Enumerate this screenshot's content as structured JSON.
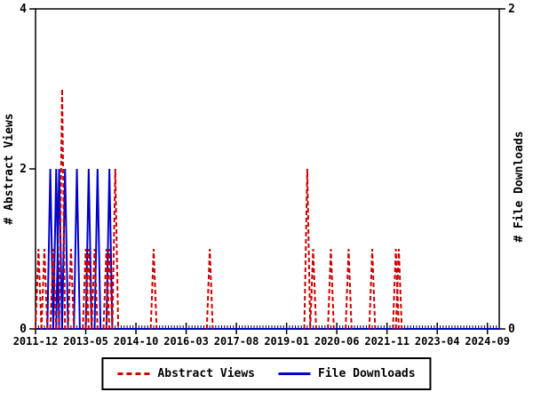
{
  "figure": {
    "background": "#ffffff",
    "axis_color": "#000000",
    "text_color": "#000000"
  },
  "chart_data": {
    "type": "line",
    "title": "",
    "x_axis": {
      "tick_labels": [
        "2011-12",
        "2013-05",
        "2014-10",
        "2016-03",
        "2017-08",
        "2019-01",
        "2020-06",
        "2021-11",
        "2023-04",
        "2024-09"
      ],
      "months_between_major_ticks": 17,
      "start_month": "2011-12",
      "end_month": "2025-01",
      "minor_tick_interval_months": 1
    },
    "y_axis_left": {
      "label": "# Abstract Views",
      "ticks": [
        0,
        2,
        4
      ],
      "tick_labels": [
        "0",
        "2",
        "4"
      ],
      "range": [
        0,
        4
      ]
    },
    "y_axis_right": {
      "label": "# File Downloads",
      "ticks": [
        0,
        2
      ],
      "tick_labels": [
        "0",
        "2"
      ],
      "range": [
        0,
        2
      ]
    },
    "grid": "off",
    "legend_position": "bottom-center",
    "series": [
      {
        "name": "Abstract Views",
        "color": "#cc0000",
        "style": "dashed",
        "axis": "left",
        "points": [
          {
            "month": "2012-01",
            "value": 1
          },
          {
            "month": "2012-03",
            "value": 1
          },
          {
            "month": "2012-06",
            "value": 1
          },
          {
            "month": "2012-09",
            "value": 3
          },
          {
            "month": "2012-12",
            "value": 1
          },
          {
            "month": "2013-05",
            "value": 1
          },
          {
            "month": "2013-06",
            "value": 1
          },
          {
            "month": "2013-08",
            "value": 1
          },
          {
            "month": "2013-12",
            "value": 1
          },
          {
            "month": "2014-01",
            "value": 1
          },
          {
            "month": "2014-03",
            "value": 2
          },
          {
            "month": "2015-04",
            "value": 1
          },
          {
            "month": "2016-11",
            "value": 1
          },
          {
            "month": "2019-08",
            "value": 2
          },
          {
            "month": "2019-10",
            "value": 1
          },
          {
            "month": "2020-04",
            "value": 1
          },
          {
            "month": "2020-10",
            "value": 1
          },
          {
            "month": "2021-06",
            "value": 1
          },
          {
            "month": "2022-02",
            "value": 1
          },
          {
            "month": "2022-03",
            "value": 1
          }
        ]
      },
      {
        "name": "File Downloads",
        "color": "#0000cc",
        "style": "solid",
        "axis": "right",
        "points": [
          {
            "month": "2012-05",
            "value": 1
          },
          {
            "month": "2012-07",
            "value": 1
          },
          {
            "month": "2012-08",
            "value": 1
          },
          {
            "month": "2012-10",
            "value": 1
          },
          {
            "month": "2013-02",
            "value": 1
          },
          {
            "month": "2013-06",
            "value": 1
          },
          {
            "month": "2013-09",
            "value": 1
          },
          {
            "month": "2014-01",
            "value": 1
          }
        ]
      }
    ]
  }
}
